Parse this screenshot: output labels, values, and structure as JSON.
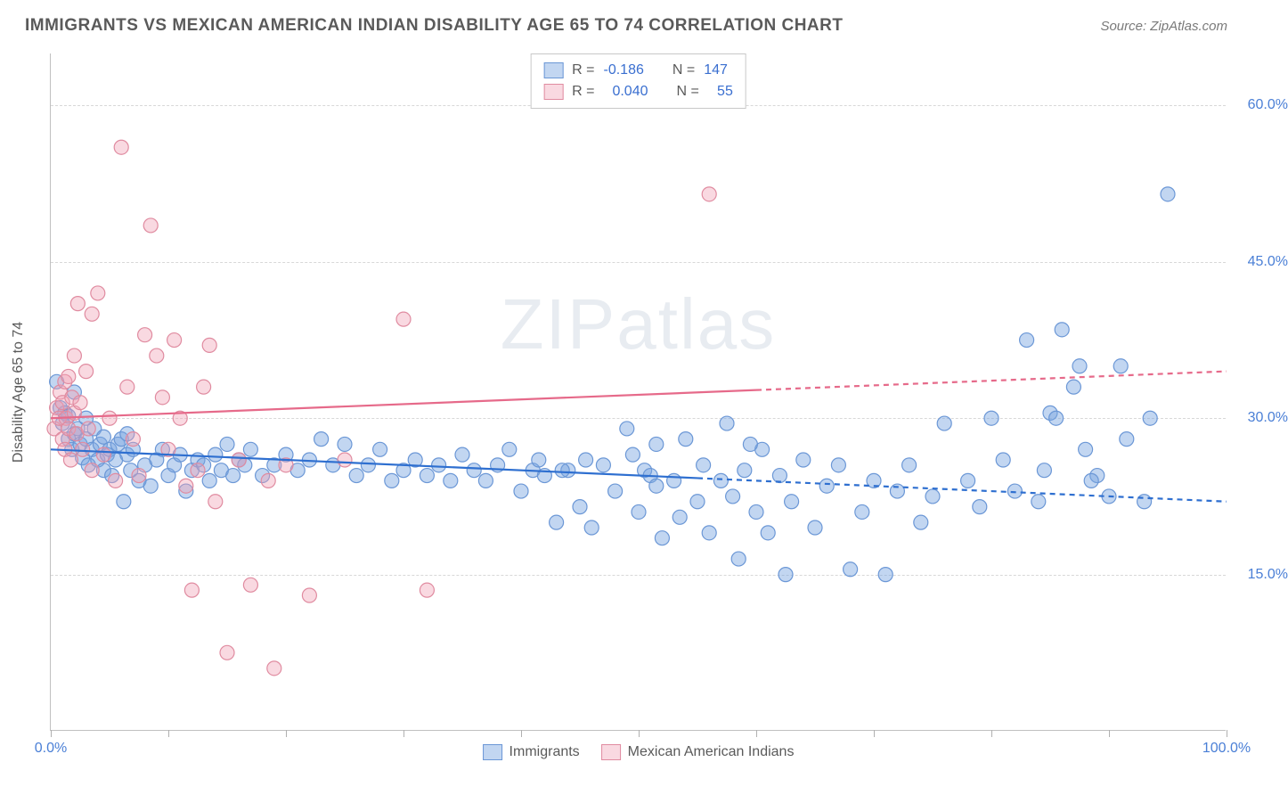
{
  "title": "IMMIGRANTS VS MEXICAN AMERICAN INDIAN DISABILITY AGE 65 TO 74 CORRELATION CHART",
  "source_label": "Source: ZipAtlas.com",
  "y_axis_label": "Disability Age 65 to 74",
  "watermark": "ZIPatlas",
  "chart": {
    "type": "scatter",
    "xlim": [
      0,
      100
    ],
    "ylim": [
      0,
      65
    ],
    "x_ticks": [
      0,
      10,
      20,
      30,
      40,
      50,
      60,
      70,
      80,
      90,
      100
    ],
    "x_tick_labels": {
      "0": "0.0%",
      "100": "100.0%"
    },
    "y_grid": [
      15,
      30,
      45,
      60
    ],
    "y_tick_labels": {
      "15": "15.0%",
      "30": "30.0%",
      "45": "45.0%",
      "60": "60.0%"
    },
    "background_color": "#ffffff",
    "grid_color": "#d8d8d8",
    "axis_color": "#c0c0c0",
    "tick_label_color": "#4a7fd6",
    "marker_radius": 8,
    "marker_stroke_width": 1.2,
    "trend_line_width": 2.2,
    "series": [
      {
        "name": "Immigrants",
        "fill": "rgba(120,165,225,0.45)",
        "stroke": "#6b97d6",
        "trend_color": "#2e6fd0",
        "trend_solid_until_x": 55,
        "trend": {
          "y_at_x0": 27.0,
          "y_at_x100": 22.0
        },
        "r_value": "-0.186",
        "n_value": "147",
        "points": [
          [
            0.5,
            33.5
          ],
          [
            0.8,
            31.0
          ],
          [
            1.0,
            29.5
          ],
          [
            1.2,
            30.5
          ],
          [
            1.5,
            28.0
          ],
          [
            1.5,
            30.2
          ],
          [
            1.8,
            27.0
          ],
          [
            2.0,
            28.5
          ],
          [
            2.0,
            32.5
          ],
          [
            2.3,
            29.0
          ],
          [
            2.5,
            27.5
          ],
          [
            2.7,
            26.2
          ],
          [
            3.0,
            28.0
          ],
          [
            3.0,
            30.0
          ],
          [
            3.2,
            25.5
          ],
          [
            3.5,
            27.0
          ],
          [
            3.7,
            29.0
          ],
          [
            4.0,
            26.0
          ],
          [
            4.2,
            27.5
          ],
          [
            4.5,
            28.2
          ],
          [
            4.5,
            25.0
          ],
          [
            4.8,
            26.5
          ],
          [
            5.0,
            27.0
          ],
          [
            5.2,
            24.5
          ],
          [
            5.5,
            26.0
          ],
          [
            5.7,
            27.5
          ],
          [
            6.0,
            28.0
          ],
          [
            6.2,
            22.0
          ],
          [
            6.5,
            26.5
          ],
          [
            6.8,
            25.0
          ],
          [
            7.0,
            27.0
          ],
          [
            7.5,
            24.0
          ],
          [
            8.0,
            25.5
          ],
          [
            8.5,
            23.5
          ],
          [
            9.0,
            26.0
          ],
          [
            9.5,
            27.0
          ],
          [
            10.0,
            24.5
          ],
          [
            10.5,
            25.5
          ],
          [
            11.0,
            26.5
          ],
          [
            11.5,
            23.0
          ],
          [
            12.0,
            25.0
          ],
          [
            12.5,
            26.0
          ],
          [
            13.0,
            25.5
          ],
          [
            13.5,
            24.0
          ],
          [
            14.0,
            26.5
          ],
          [
            14.5,
            25.0
          ],
          [
            15.0,
            27.5
          ],
          [
            15.5,
            24.5
          ],
          [
            16.0,
            26.0
          ],
          [
            16.5,
            25.5
          ],
          [
            17.0,
            27.0
          ],
          [
            18.0,
            24.5
          ],
          [
            19.0,
            25.5
          ],
          [
            20.0,
            26.5
          ],
          [
            21.0,
            25.0
          ],
          [
            22.0,
            26.0
          ],
          [
            23.0,
            28.0
          ],
          [
            24.0,
            25.5
          ],
          [
            25.0,
            27.5
          ],
          [
            26.0,
            24.5
          ],
          [
            27.0,
            25.5
          ],
          [
            28.0,
            27.0
          ],
          [
            29.0,
            24.0
          ],
          [
            30.0,
            25.0
          ],
          [
            31.0,
            26.0
          ],
          [
            32.0,
            24.5
          ],
          [
            33.0,
            25.5
          ],
          [
            34.0,
            24.0
          ],
          [
            35.0,
            26.5
          ],
          [
            36.0,
            25.0
          ],
          [
            37.0,
            24.0
          ],
          [
            38.0,
            25.5
          ],
          [
            39.0,
            27.0
          ],
          [
            40.0,
            23.0
          ],
          [
            41.0,
            25.0
          ],
          [
            42.0,
            24.5
          ],
          [
            43.0,
            20.0
          ],
          [
            44.0,
            25.0
          ],
          [
            45.0,
            21.5
          ],
          [
            45.5,
            26.0
          ],
          [
            46.0,
            19.5
          ],
          [
            47.0,
            25.5
          ],
          [
            48.0,
            23.0
          ],
          [
            49.0,
            29.0
          ],
          [
            50.0,
            21.0
          ],
          [
            50.5,
            25.0
          ],
          [
            51.0,
            24.5
          ],
          [
            51.5,
            27.5
          ],
          [
            52.0,
            18.5
          ],
          [
            53.0,
            24.0
          ],
          [
            53.5,
            20.5
          ],
          [
            54.0,
            28.0
          ],
          [
            55.0,
            22.0
          ],
          [
            55.5,
            25.5
          ],
          [
            56.0,
            19.0
          ],
          [
            57.0,
            24.0
          ],
          [
            57.5,
            29.5
          ],
          [
            58.0,
            22.5
          ],
          [
            58.5,
            16.5
          ],
          [
            59.0,
            25.0
          ],
          [
            60.0,
            21.0
          ],
          [
            60.5,
            27.0
          ],
          [
            61.0,
            19.0
          ],
          [
            62.0,
            24.5
          ],
          [
            62.5,
            15.0
          ],
          [
            63.0,
            22.0
          ],
          [
            64.0,
            26.0
          ],
          [
            65.0,
            19.5
          ],
          [
            66.0,
            23.5
          ],
          [
            67.0,
            25.5
          ],
          [
            68.0,
            15.5
          ],
          [
            69.0,
            21.0
          ],
          [
            70.0,
            24.0
          ],
          [
            71.0,
            15.0
          ],
          [
            72.0,
            23.0
          ],
          [
            73.0,
            25.5
          ],
          [
            74.0,
            20.0
          ],
          [
            75.0,
            22.5
          ],
          [
            76.0,
            29.5
          ],
          [
            78.0,
            24.0
          ],
          [
            79.0,
            21.5
          ],
          [
            80.0,
            30.0
          ],
          [
            81.0,
            26.0
          ],
          [
            82.0,
            23.0
          ],
          [
            83.0,
            37.5
          ],
          [
            84.0,
            22.0
          ],
          [
            85.0,
            30.5
          ],
          [
            86.0,
            38.5
          ],
          [
            87.0,
            33.0
          ],
          [
            88.0,
            27.0
          ],
          [
            89.0,
            24.5
          ],
          [
            90.0,
            22.5
          ],
          [
            91.0,
            35.0
          ],
          [
            91.5,
            28.0
          ],
          [
            93.0,
            22.0
          ],
          [
            93.5,
            30.0
          ],
          [
            95.0,
            51.5
          ],
          [
            84.5,
            25.0
          ],
          [
            85.5,
            30.0
          ],
          [
            87.5,
            35.0
          ],
          [
            88.5,
            24.0
          ],
          [
            49.5,
            26.5
          ],
          [
            51.5,
            23.5
          ],
          [
            41.5,
            26.0
          ],
          [
            43.5,
            25.0
          ],
          [
            59.5,
            27.5
          ],
          [
            6.5,
            28.5
          ]
        ]
      },
      {
        "name": "Mexican American Indians",
        "fill": "rgba(240,160,180,0.40)",
        "stroke": "#e08ba0",
        "trend_color": "#e66a8a",
        "trend_solid_until_x": 60,
        "trend": {
          "y_at_x0": 30.0,
          "y_at_x100": 34.5
        },
        "r_value": "0.040",
        "n_value": "55",
        "points": [
          [
            0.3,
            29.0
          ],
          [
            0.5,
            31.0
          ],
          [
            0.7,
            30.0
          ],
          [
            0.8,
            32.5
          ],
          [
            1.0,
            28.0
          ],
          [
            1.0,
            31.5
          ],
          [
            1.2,
            27.0
          ],
          [
            1.2,
            33.5
          ],
          [
            1.3,
            30.0
          ],
          [
            1.5,
            29.0
          ],
          [
            1.5,
            34.0
          ],
          [
            1.7,
            26.0
          ],
          [
            1.8,
            32.0
          ],
          [
            2.0,
            30.5
          ],
          [
            2.0,
            36.0
          ],
          [
            2.2,
            28.5
          ],
          [
            2.3,
            41.0
          ],
          [
            2.5,
            31.5
          ],
          [
            2.7,
            27.0
          ],
          [
            3.0,
            34.5
          ],
          [
            3.2,
            29.0
          ],
          [
            3.5,
            25.0
          ],
          [
            3.5,
            40.0
          ],
          [
            4.0,
            42.0
          ],
          [
            4.5,
            26.5
          ],
          [
            5.0,
            30.0
          ],
          [
            5.5,
            24.0
          ],
          [
            6.0,
            56.0
          ],
          [
            6.5,
            33.0
          ],
          [
            7.0,
            28.0
          ],
          [
            7.5,
            24.5
          ],
          [
            8.0,
            38.0
          ],
          [
            8.5,
            48.5
          ],
          [
            9.0,
            36.0
          ],
          [
            9.5,
            32.0
          ],
          [
            10.0,
            27.0
          ],
          [
            10.5,
            37.5
          ],
          [
            11.0,
            30.0
          ],
          [
            11.5,
            23.5
          ],
          [
            12.0,
            13.5
          ],
          [
            12.5,
            25.0
          ],
          [
            13.0,
            33.0
          ],
          [
            13.5,
            37.0
          ],
          [
            14.0,
            22.0
          ],
          [
            15.0,
            7.5
          ],
          [
            16.0,
            26.0
          ],
          [
            17.0,
            14.0
          ],
          [
            18.5,
            24.0
          ],
          [
            19.0,
            6.0
          ],
          [
            20.0,
            25.5
          ],
          [
            22.0,
            13.0
          ],
          [
            25.0,
            26.0
          ],
          [
            30.0,
            39.5
          ],
          [
            32.0,
            13.5
          ],
          [
            56.0,
            51.5
          ]
        ]
      }
    ]
  },
  "legend_top": {
    "r_label": "R =",
    "n_label": "N ="
  },
  "legend_bottom": {
    "items": [
      "Immigrants",
      "Mexican American Indians"
    ]
  }
}
